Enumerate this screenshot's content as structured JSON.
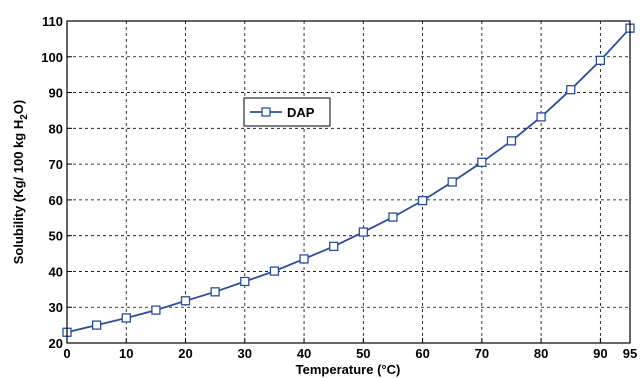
{
  "chart_data": {
    "type": "line",
    "xlabel": "Temperature (°C)",
    "ylabel_parts": [
      "Solubility (Kg/ 100 kg H",
      "2",
      "O)"
    ],
    "xlim": [
      0,
      95
    ],
    "ylim": [
      20,
      110
    ],
    "x_ticks": [
      "0",
      "10",
      "20",
      "30",
      "40",
      "50",
      "60",
      "70",
      "80",
      "90",
      "95"
    ],
    "y_ticks": [
      "20",
      "30",
      "40",
      "50",
      "60",
      "70",
      "80",
      "90",
      "100",
      "110"
    ],
    "grid": true,
    "legend_position": "upper-left",
    "series": [
      {
        "name": "DAP",
        "color": "#2a4d9b",
        "marker": "square",
        "x": [
          0,
          5,
          10,
          15,
          20,
          25,
          30,
          35,
          40,
          45,
          50,
          55,
          60,
          65,
          70,
          75,
          80,
          85,
          90,
          95
        ],
        "y": [
          23,
          25,
          27,
          29.2,
          31.8,
          34.3,
          37.2,
          40.1,
          43.5,
          47,
          51,
          55.2,
          59.8,
          65,
          70.5,
          76.5,
          83.2,
          90.8,
          99,
          108
        ]
      }
    ]
  }
}
